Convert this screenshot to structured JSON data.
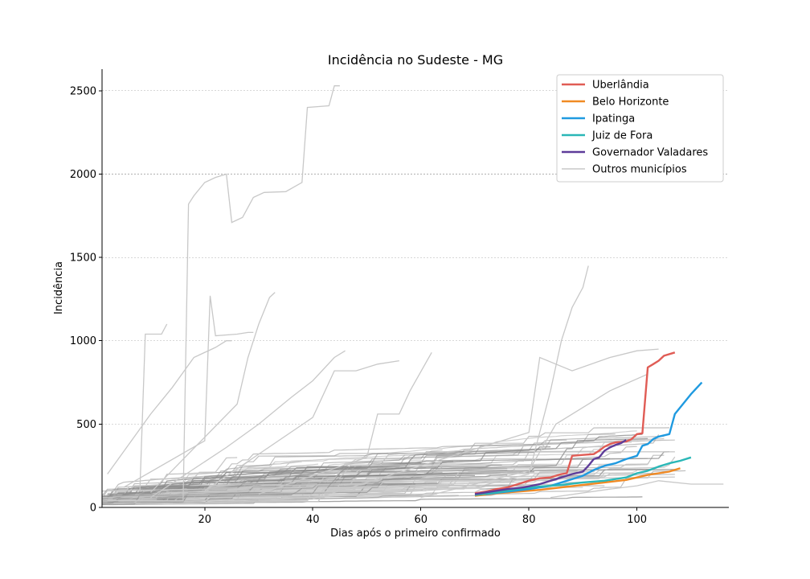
{
  "chart_data": {
    "type": "line",
    "title": "Incidência no Sudeste - MG",
    "xlabel": "Dias após o primeiro confirmado",
    "ylabel": "Incidência",
    "xlim": [
      1,
      117
    ],
    "ylim": [
      0,
      2620
    ],
    "x_ticks": [
      20,
      40,
      60,
      80,
      100
    ],
    "y_ticks": [
      0,
      500,
      1000,
      1500,
      2000,
      2500
    ],
    "grid": "horizontal-dashed",
    "legend_position": "top-right",
    "series": [
      {
        "name": "Uberlândia",
        "color": "#e05c55",
        "x": [
          70,
          72,
          74,
          76,
          78,
          80,
          82,
          84,
          86,
          87,
          88,
          90,
          92,
          93,
          94,
          95,
          96,
          98,
          99,
          100,
          101,
          102,
          103,
          104,
          105,
          107
        ],
        "y": [
          85,
          95,
          110,
          120,
          140,
          160,
          175,
          180,
          200,
          205,
          310,
          315,
          320,
          340,
          365,
          380,
          390,
          395,
          410,
          440,
          445,
          840,
          860,
          880,
          910,
          930
        ]
      },
      {
        "name": "Belo Horizonte",
        "color": "#f08a24",
        "x": [
          70,
          74,
          78,
          82,
          86,
          90,
          94,
          98,
          100,
          102,
          104,
          106,
          108
        ],
        "y": [
          70,
          85,
          95,
          105,
          120,
          135,
          150,
          165,
          180,
          195,
          205,
          215,
          235
        ]
      },
      {
        "name": "Ipatinga",
        "color": "#1f9ae0",
        "x": [
          72,
          76,
          80,
          84,
          88,
          90,
          92,
          94,
          96,
          98,
          100,
          101,
          102,
          103,
          104,
          106,
          107,
          108,
          110,
          112
        ],
        "y": [
          80,
          95,
          110,
          130,
          170,
          190,
          225,
          250,
          265,
          290,
          310,
          370,
          380,
          410,
          425,
          440,
          560,
          600,
          680,
          750
        ]
      },
      {
        "name": "Juiz de Fora",
        "color": "#2ab7b7",
        "x": [
          70,
          74,
          78,
          82,
          86,
          90,
          94,
          98,
          100,
          102,
          104,
          106,
          108,
          110
        ],
        "y": [
          75,
          90,
          110,
          125,
          135,
          150,
          160,
          180,
          205,
          220,
          245,
          265,
          280,
          300
        ]
      },
      {
        "name": "Governador Valadares",
        "color": "#5e3c99",
        "x": [
          70,
          73,
          76,
          79,
          82,
          85,
          88,
          90,
          91,
          92,
          93,
          94,
          95,
          96,
          97,
          98
        ],
        "y": [
          80,
          95,
          110,
          120,
          140,
          170,
          200,
          215,
          250,
          290,
          300,
          340,
          360,
          375,
          385,
          405
        ]
      },
      {
        "name": "Outros municípios",
        "color": "#c8c8c8"
      }
    ]
  }
}
